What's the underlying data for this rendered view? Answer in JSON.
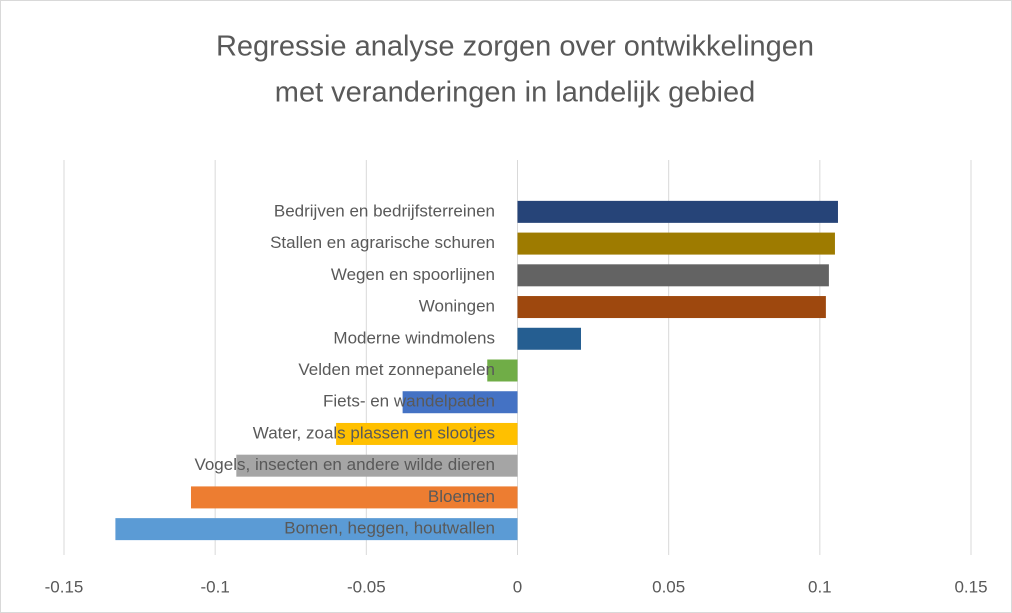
{
  "chart_data": {
    "type": "barh",
    "title": [
      "Regressie analyse zorgen over ontwikkelingen",
      "met veranderingen in landelijk gebied"
    ],
    "categories": [
      "Bedrijven en bedrijfsterreinen",
      "Stallen en agrarische schuren",
      "Wegen en spoorlijnen",
      "Woningen",
      "Moderne windmolens",
      "Velden met zonnepanelen",
      "Fiets- en wandelpaden",
      "Water, zoals plassen en slootjes",
      "Vogels, insecten en andere wilde dieren",
      "Bloemen",
      "Bomen, heggen, houtwallen"
    ],
    "values": [
      0.106,
      0.105,
      0.103,
      0.102,
      0.021,
      -0.01,
      -0.038,
      -0.06,
      -0.093,
      -0.108,
      -0.133
    ],
    "colors": [
      "#264478",
      "#9e7b00",
      "#636363",
      "#9e480e",
      "#255e91",
      "#70ad47",
      "#4472c4",
      "#ffc000",
      "#a5a5a5",
      "#ed7d31",
      "#5b9bd5"
    ],
    "xlim": [
      -0.15,
      0.15
    ],
    "xticks": [
      -0.15,
      -0.1,
      -0.05,
      0,
      0.05,
      0.1,
      0.15
    ],
    "grid": true
  }
}
